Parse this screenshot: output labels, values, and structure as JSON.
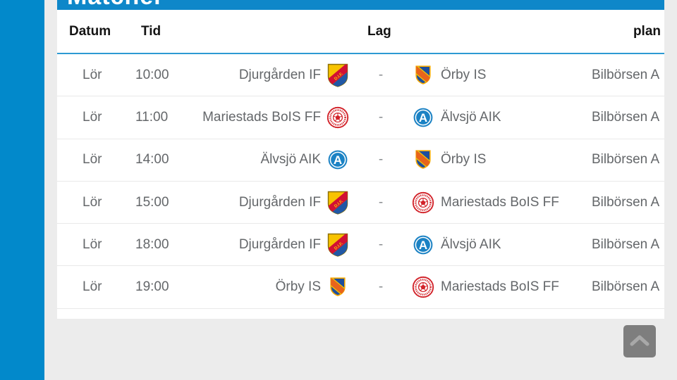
{
  "page": {
    "title": "Matcher",
    "background_color": "#ececec",
    "sidebar_color": "#0289cb",
    "accent_blue": "#0e87c9"
  },
  "table": {
    "headers": {
      "datum": "Datum",
      "tid": "Tid",
      "lag": "Lag",
      "plan": "plan"
    },
    "separator": "-",
    "rows": [
      {
        "day": "Lör",
        "time": "10:00",
        "home": "Djurgården IF",
        "home_crest": "dif",
        "away": "Örby IS",
        "away_crest": "orby",
        "venue": "Bilbörsen A"
      },
      {
        "day": "Lör",
        "time": "11:00",
        "home": "Mariestads BoIS FF",
        "home_crest": "mariestad",
        "away": "Älvsjö AIK",
        "away_crest": "alvsjo",
        "venue": "Bilbörsen A"
      },
      {
        "day": "Lör",
        "time": "14:00",
        "home": "Älvsjö AIK",
        "home_crest": "alvsjo",
        "away": "Örby IS",
        "away_crest": "orby",
        "venue": "Bilbörsen A"
      },
      {
        "day": "Lör",
        "time": "15:00",
        "home": "Djurgården IF",
        "home_crest": "dif",
        "away": "Mariestads BoIS FF",
        "away_crest": "mariestad",
        "venue": "Bilbörsen A"
      },
      {
        "day": "Lör",
        "time": "18:00",
        "home": "Djurgården IF",
        "home_crest": "dif",
        "away": "Älvsjö AIK",
        "away_crest": "alvsjo",
        "venue": "Bilbörsen A"
      },
      {
        "day": "Lör",
        "time": "19:00",
        "home": "Örby IS",
        "home_crest": "orby",
        "away": "Mariestads BoIS FF",
        "away_crest": "mariestad",
        "venue": "Bilbörsen A"
      }
    ],
    "crest_names": {
      "dif": "Djurgården IF crest",
      "orby": "Örby IS crest",
      "mariestad": "Mariestads BoIS FF crest",
      "alvsjo": "Älvsjö AIK crest"
    }
  },
  "scroll_top": {
    "icon": "chevron-up"
  }
}
